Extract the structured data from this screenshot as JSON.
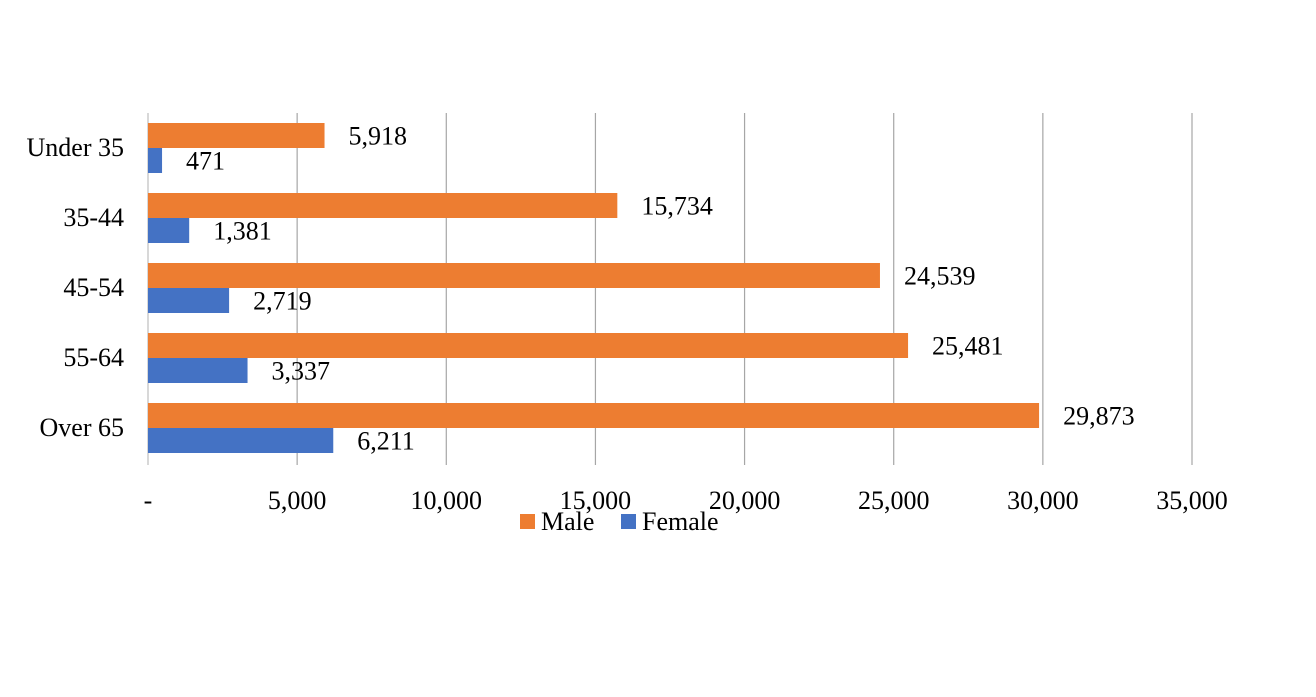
{
  "chart_data": {
    "type": "bar",
    "orientation": "horizontal",
    "categories": [
      "Under 35",
      "35-44",
      "45-54",
      "55-64",
      "Over 65"
    ],
    "series": [
      {
        "name": "Male",
        "color": "#ED7D31",
        "values": [
          5918,
          15734,
          24539,
          25481,
          29873
        ],
        "labels": [
          "5,918",
          "15,734",
          "24,539",
          "25,481",
          "29,873"
        ]
      },
      {
        "name": "Female",
        "color": "#4472C4",
        "values": [
          471,
          1381,
          2719,
          3337,
          6211
        ],
        "labels": [
          "471",
          "1,381",
          "2,719",
          "3,337",
          "6,211"
        ]
      }
    ],
    "xlim": [
      0,
      35000
    ],
    "x_ticks": [
      0,
      5000,
      10000,
      15000,
      20000,
      25000,
      30000,
      35000
    ],
    "x_tick_labels": [
      "-",
      "5,000",
      "10,000",
      "15,000",
      "20,000",
      "25,000",
      "30,000",
      "35,000"
    ],
    "grid": "vertical",
    "legend_position": "bottom",
    "title": "",
    "xlabel": "",
    "ylabel": ""
  }
}
